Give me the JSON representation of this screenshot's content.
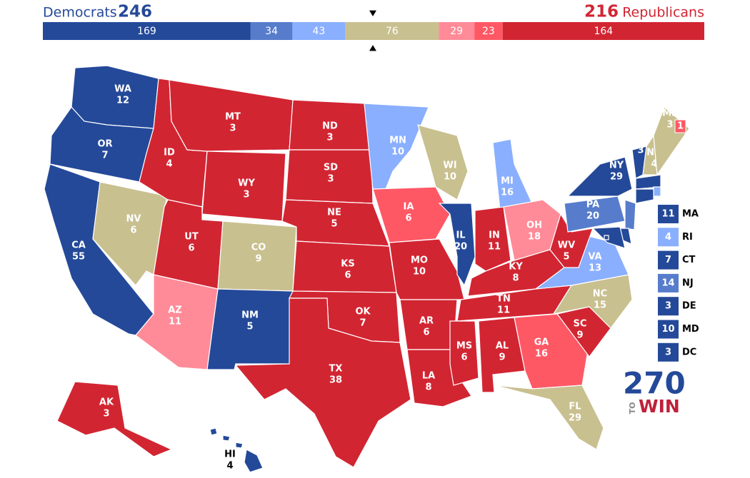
{
  "header": {
    "left_label": "Democrats",
    "left_total": "246",
    "right_total": "216",
    "right_label": "Republicans"
  },
  "bar": {
    "segments": [
      {
        "value": 169,
        "color": "#244999"
      },
      {
        "value": 34,
        "color": "#577ccc"
      },
      {
        "value": 43,
        "color": "#8aafff"
      },
      {
        "value": 76,
        "color": "#c9c090"
      },
      {
        "value": 29,
        "color": "#ff8b98"
      },
      {
        "value": 23,
        "color": "#ff5865"
      },
      {
        "value": 164,
        "color": "#d22532"
      }
    ]
  },
  "states": [
    {
      "abbr": "WA",
      "votes": "12",
      "color": "#244999"
    },
    {
      "abbr": "OR",
      "votes": "7",
      "color": "#244999"
    },
    {
      "abbr": "CA",
      "votes": "55",
      "color": "#244999"
    },
    {
      "abbr": "NV",
      "votes": "6",
      "color": "#c9c090"
    },
    {
      "abbr": "ID",
      "votes": "4",
      "color": "#d22532"
    },
    {
      "abbr": "MT",
      "votes": "3",
      "color": "#d22532"
    },
    {
      "abbr": "WY",
      "votes": "3",
      "color": "#d22532"
    },
    {
      "abbr": "UT",
      "votes": "6",
      "color": "#d22532"
    },
    {
      "abbr": "AZ",
      "votes": "11",
      "color": "#ff8b98"
    },
    {
      "abbr": "CO",
      "votes": "9",
      "color": "#c9c090"
    },
    {
      "abbr": "NM",
      "votes": "5",
      "color": "#244999"
    },
    {
      "abbr": "ND",
      "votes": "3",
      "color": "#d22532"
    },
    {
      "abbr": "SD",
      "votes": "3",
      "color": "#d22532"
    },
    {
      "abbr": "NE",
      "votes": "5",
      "color": "#d22532"
    },
    {
      "abbr": "KS",
      "votes": "6",
      "color": "#d22532"
    },
    {
      "abbr": "OK",
      "votes": "7",
      "color": "#d22532"
    },
    {
      "abbr": "TX",
      "votes": "38",
      "color": "#d22532"
    },
    {
      "abbr": "MN",
      "votes": "10",
      "color": "#8aafff"
    },
    {
      "abbr": "IA",
      "votes": "6",
      "color": "#ff5865"
    },
    {
      "abbr": "MO",
      "votes": "10",
      "color": "#d22532"
    },
    {
      "abbr": "AR",
      "votes": "6",
      "color": "#d22532"
    },
    {
      "abbr": "LA",
      "votes": "8",
      "color": "#d22532"
    },
    {
      "abbr": "WI",
      "votes": "10",
      "color": "#c9c090"
    },
    {
      "abbr": "IL",
      "votes": "20",
      "color": "#244999"
    },
    {
      "abbr": "MI",
      "votes": "16",
      "color": "#8aafff"
    },
    {
      "abbr": "IN",
      "votes": "11",
      "color": "#d22532"
    },
    {
      "abbr": "OH",
      "votes": "18",
      "color": "#ff8b98"
    },
    {
      "abbr": "KY",
      "votes": "8",
      "color": "#d22532"
    },
    {
      "abbr": "TN",
      "votes": "11",
      "color": "#d22532"
    },
    {
      "abbr": "MS",
      "votes": "6",
      "color": "#d22532"
    },
    {
      "abbr": "AL",
      "votes": "9",
      "color": "#d22532"
    },
    {
      "abbr": "GA",
      "votes": "16",
      "color": "#ff5865"
    },
    {
      "abbr": "FL",
      "votes": "29",
      "color": "#c9c090"
    },
    {
      "abbr": "SC",
      "votes": "9",
      "color": "#d22532"
    },
    {
      "abbr": "NC",
      "votes": "15",
      "color": "#c9c090"
    },
    {
      "abbr": "VA",
      "votes": "13",
      "color": "#8aafff"
    },
    {
      "abbr": "WV",
      "votes": "5",
      "color": "#d22532"
    },
    {
      "abbr": "PA",
      "votes": "20",
      "color": "#577ccc"
    },
    {
      "abbr": "NY",
      "votes": "29",
      "color": "#244999"
    },
    {
      "abbr": "VT",
      "votes": "3",
      "color": "#244999"
    },
    {
      "abbr": "NH",
      "votes": "4",
      "color": "#c9c090"
    },
    {
      "abbr": "ME",
      "votes": "3",
      "color": "#c9c090"
    },
    {
      "abbr": "AK",
      "votes": "3",
      "color": "#d22532"
    },
    {
      "abbr": "HI",
      "votes": "4",
      "color": "#244999"
    }
  ],
  "maine_district": {
    "votes": "1",
    "color": "#ff5865"
  },
  "small_states": [
    {
      "abbr": "MA",
      "votes": "11",
      "color": "#244999"
    },
    {
      "abbr": "RI",
      "votes": "4",
      "color": "#8aafff"
    },
    {
      "abbr": "CT",
      "votes": "7",
      "color": "#244999"
    },
    {
      "abbr": "NJ",
      "votes": "14",
      "color": "#577ccc"
    },
    {
      "abbr": "DE",
      "votes": "3",
      "color": "#244999"
    },
    {
      "abbr": "MD",
      "votes": "10",
      "color": "#244999"
    },
    {
      "abbr": "DC",
      "votes": "3",
      "color": "#244999"
    }
  ],
  "logo": {
    "number": "270",
    "to": "TO",
    "win": "WIN"
  }
}
